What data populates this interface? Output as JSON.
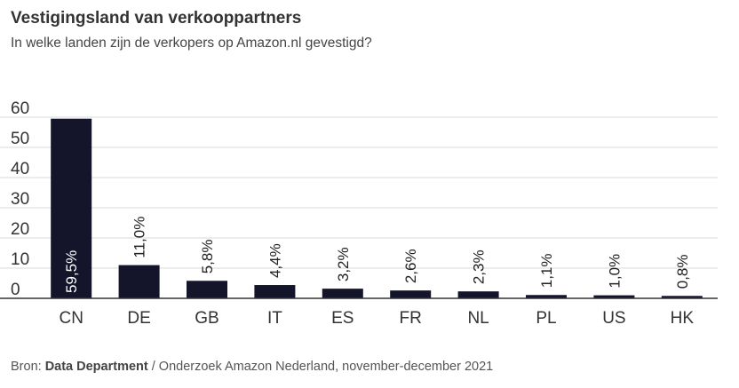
{
  "header": {
    "title": "Vestigingsland van verkooppartners",
    "subtitle": "In welke landen zijn de verkopers op Amazon.nl gevestigd?"
  },
  "footer": {
    "prefix": "Bron: ",
    "source_bold": "Data Department",
    "rest": " / Onderzoek Amazon Nederland, november-december 2021"
  },
  "colors": {
    "bar": "#14142b",
    "grid": "#d9d9d9",
    "axis": "#333333"
  },
  "chart_data": {
    "type": "bar",
    "title": "Vestigingsland van verkooppartners",
    "subtitle": "In welke landen zijn de verkopers op Amazon.nl gevestigd?",
    "categories": [
      "CN",
      "DE",
      "GB",
      "IT",
      "ES",
      "FR",
      "NL",
      "PL",
      "US",
      "HK"
    ],
    "values": [
      59.5,
      11.0,
      5.8,
      4.4,
      3.2,
      2.6,
      2.3,
      1.1,
      1.0,
      0.8
    ],
    "data_labels": [
      "59,5%",
      "11,0%",
      "5,8%",
      "4,4%",
      "3,2%",
      "2,6%",
      "2,3%",
      "1,1%",
      "1,0%",
      "0,8%"
    ],
    "yticks": [
      0,
      10,
      20,
      30,
      40,
      50,
      60
    ],
    "ylim": [
      0,
      60
    ],
    "grid": true,
    "legend": "none"
  }
}
